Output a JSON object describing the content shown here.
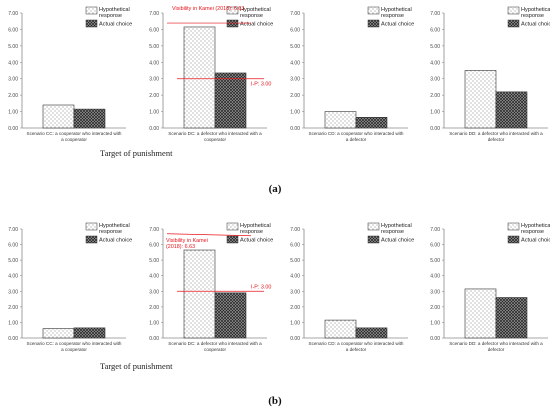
{
  "figure": {
    "target_label": "Target of punishment",
    "hatch_colors": {
      "hypothetical": "#6e6e6e",
      "actual": "#222222",
      "annotation": "#e8141c"
    }
  },
  "chart_data": [
    {
      "type": "bar",
      "panel": "a",
      "panel_label": "(a)",
      "title": "",
      "categories": [
        "Scenario CC: a cooperator who interacted with a cooperator"
      ],
      "series": [
        {
          "name": "Hypothetical response",
          "values": [
            1.4
          ]
        },
        {
          "name": "Actual choice",
          "values": [
            1.15
          ]
        }
      ],
      "ylim": [
        0,
        7
      ],
      "yticks": [
        "0.00",
        "1.00",
        "2.00",
        "3.00",
        "4.00",
        "5.00",
        "6.00",
        "7.00"
      ],
      "legend": "top-right",
      "annotations": []
    },
    {
      "type": "bar",
      "panel": "a",
      "title": "",
      "categories": [
        "Scenario DC: a defector who interacted with a cooperator"
      ],
      "series": [
        {
          "name": "Hypothetical response",
          "values": [
            6.15
          ]
        },
        {
          "name": "Actual choice",
          "values": [
            3.35
          ]
        }
      ],
      "ylim": [
        0,
        7
      ],
      "yticks": [
        "0.00",
        "1.00",
        "2.00",
        "3.00",
        "4.00",
        "5.00",
        "6.00",
        "7.00"
      ],
      "legend": "top-right",
      "annotations": [
        {
          "text": "Visibility in Kamei (2018): 6.63",
          "value": 6.63
        },
        {
          "text": "I-P: 3.00",
          "value": 3.0
        }
      ]
    },
    {
      "type": "bar",
      "panel": "a",
      "title": "",
      "categories": [
        "Scenario CD: a cooperator who interacted with a defector"
      ],
      "series": [
        {
          "name": "Hypothetical response",
          "values": [
            1.0
          ]
        },
        {
          "name": "Actual choice",
          "values": [
            0.65
          ]
        }
      ],
      "ylim": [
        0,
        7
      ],
      "yticks": [
        "0.00",
        "1.00",
        "2.00",
        "3.00",
        "4.00",
        "5.00",
        "6.00",
        "7.00"
      ],
      "legend": "top-right",
      "annotations": []
    },
    {
      "type": "bar",
      "panel": "a",
      "title": "",
      "categories": [
        "Scenario DD: a defector who interacted with a defector"
      ],
      "series": [
        {
          "name": "Hypothetical response",
          "values": [
            3.5
          ]
        },
        {
          "name": "Actual choice",
          "values": [
            2.2
          ]
        }
      ],
      "ylim": [
        0,
        7
      ],
      "yticks": [
        "0.00",
        "1.00",
        "2.00",
        "3.00",
        "4.00",
        "5.00",
        "6.00",
        "7.00"
      ],
      "legend": "top-right",
      "annotations": []
    },
    {
      "type": "bar",
      "panel": "b",
      "panel_label": "(b)",
      "title": "",
      "categories": [
        "Scenario CC: a cooperator who interacted with a cooperator"
      ],
      "series": [
        {
          "name": "Hypothetical response",
          "values": [
            0.6
          ]
        },
        {
          "name": "Actual choice",
          "values": [
            0.65
          ]
        }
      ],
      "ylim": [
        0,
        7
      ],
      "yticks": [
        "0.00",
        "1.00",
        "2.00",
        "3.00",
        "4.00",
        "5.00",
        "6.00",
        "7.00"
      ],
      "legend": "top-right",
      "annotations": []
    },
    {
      "type": "bar",
      "panel": "b",
      "title": "",
      "categories": [
        "Scenario DC: a defector who interacted with a cooperator"
      ],
      "series": [
        {
          "name": "Hypothetical response",
          "values": [
            5.65
          ]
        },
        {
          "name": "Actual choice",
          "values": [
            2.9
          ]
        }
      ],
      "ylim": [
        0,
        7
      ],
      "yticks": [
        "0.00",
        "1.00",
        "2.00",
        "3.00",
        "4.00",
        "5.00",
        "6.00",
        "7.00"
      ],
      "legend": "top-right",
      "annotations": [
        {
          "text": "Visibility in Kamei (2018): 6.63",
          "value": 6.63
        },
        {
          "text": "I-P: 3.00",
          "value": 3.0
        }
      ]
    },
    {
      "type": "bar",
      "panel": "b",
      "title": "",
      "categories": [
        "Scenario CD: a cooperator who interacted with a defector"
      ],
      "series": [
        {
          "name": "Hypothetical response",
          "values": [
            1.15
          ]
        },
        {
          "name": "Actual choice",
          "values": [
            0.65
          ]
        }
      ],
      "ylim": [
        0,
        7
      ],
      "yticks": [
        "0.00",
        "1.00",
        "2.00",
        "3.00",
        "4.00",
        "5.00",
        "6.00",
        "7.00"
      ],
      "legend": "top-right",
      "annotations": []
    },
    {
      "type": "bar",
      "panel": "b",
      "title": "",
      "categories": [
        "Scenario DD: a defector who interacted with a defector"
      ],
      "series": [
        {
          "name": "Hypothetical response",
          "values": [
            3.15
          ]
        },
        {
          "name": "Actual choice",
          "values": [
            2.6
          ]
        }
      ],
      "ylim": [
        0,
        7
      ],
      "yticks": [
        "0.00",
        "1.00",
        "2.00",
        "3.00",
        "4.00",
        "5.00",
        "6.00",
        "7.00"
      ],
      "legend": "top-right",
      "annotations": []
    }
  ]
}
